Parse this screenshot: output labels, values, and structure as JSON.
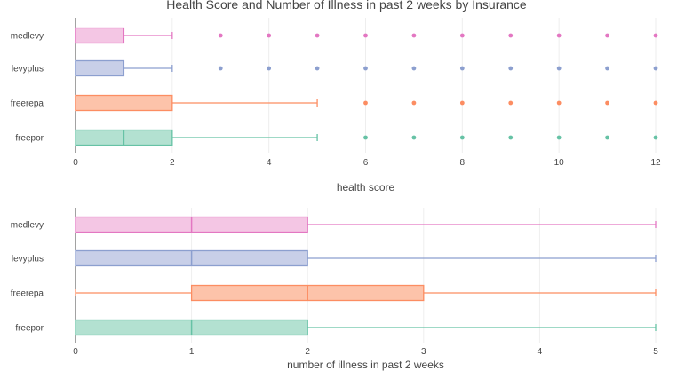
{
  "chart_data": [
    {
      "type": "box",
      "title": "Health Score and Number of Illness in past 2 weeks by Insurance",
      "xlabel": "health score",
      "ylabel": "",
      "xlim": [
        -0.2,
        12.2
      ],
      "xticks": [
        0,
        2,
        4,
        6,
        8,
        10,
        12
      ],
      "grid": true,
      "orientation": "horizontal",
      "categories": [
        "medlevy",
        "levyplus",
        "freerepa",
        "freepor"
      ],
      "series": [
        {
          "category": "medlevy",
          "color": "#e377c2",
          "fill": "#f4c6e4",
          "min": 0,
          "q1": 0,
          "median": 0,
          "q3": 1,
          "max": 2,
          "outliers": [
            3,
            4,
            5,
            6,
            7,
            8,
            9,
            10,
            11,
            12
          ]
        },
        {
          "category": "levyplus",
          "color": "#8c9fcf",
          "fill": "#c8cfe8",
          "min": 0,
          "q1": 0,
          "median": 0,
          "q3": 1,
          "max": 2,
          "outliers": [
            3,
            4,
            5,
            6,
            7,
            8,
            9,
            10,
            11,
            12
          ]
        },
        {
          "category": "freerepa",
          "color": "#fc8d62",
          "fill": "#fdc3aa",
          "min": 0,
          "q1": 0,
          "median": 0,
          "q3": 2,
          "max": 5,
          "outliers": [
            6,
            7,
            8,
            9,
            10,
            11,
            12
          ]
        },
        {
          "category": "freepor",
          "color": "#66c2a5",
          "fill": "#b3e1d1",
          "min": 0,
          "q1": 0,
          "median": 1,
          "q3": 2,
          "max": 5,
          "outliers": [
            6,
            7,
            8,
            9,
            10,
            11,
            12
          ]
        }
      ]
    },
    {
      "type": "box",
      "title": "",
      "xlabel": "number of illness in past 2 weeks",
      "ylabel": "",
      "xlim": [
        -0.08,
        5.08
      ],
      "xticks": [
        0,
        1,
        2,
        3,
        4,
        5
      ],
      "grid": true,
      "orientation": "horizontal",
      "categories": [
        "medlevy",
        "levyplus",
        "freerepa",
        "freepor"
      ],
      "series": [
        {
          "category": "medlevy",
          "color": "#e377c2",
          "fill": "#f4c6e4",
          "min": 0,
          "q1": 0,
          "median": 1,
          "q3": 2,
          "max": 5,
          "outliers": []
        },
        {
          "category": "levyplus",
          "color": "#8c9fcf",
          "fill": "#c8cfe8",
          "min": 0,
          "q1": 0,
          "median": 1,
          "q3": 2,
          "max": 5,
          "outliers": []
        },
        {
          "category": "freerepa",
          "color": "#fc8d62",
          "fill": "#fdc3aa",
          "min": 0,
          "q1": 1,
          "median": 2,
          "q3": 3,
          "max": 5,
          "outliers": []
        },
        {
          "category": "freepor",
          "color": "#66c2a5",
          "fill": "#b3e1d1",
          "min": 0,
          "q1": 0,
          "median": 1,
          "q3": 2,
          "max": 5,
          "outliers": []
        }
      ]
    }
  ]
}
